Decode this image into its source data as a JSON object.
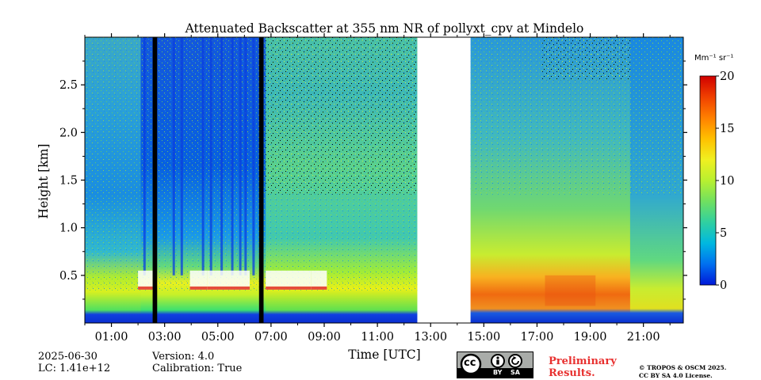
{
  "chart_data": {
    "type": "heatmap",
    "title": "Attenuated Backscatter at 355 nm NR of pollyxt_cpv at Mindelo",
    "xlabel": "Time [UTC]",
    "ylabel": "Height [km]",
    "x_range_hours": [
      0.0,
      22.5
    ],
    "y_range_km": [
      0.0,
      3.0
    ],
    "x_ticks": [
      {
        "value": 1,
        "label": "01:00"
      },
      {
        "value": 3,
        "label": "03:00"
      },
      {
        "value": 5,
        "label": "05:00"
      },
      {
        "value": 7,
        "label": "07:00"
      },
      {
        "value": 9,
        "label": "09:00"
      },
      {
        "value": 11,
        "label": "11:00"
      },
      {
        "value": 13,
        "label": "13:00"
      },
      {
        "value": 15,
        "label": "15:00"
      },
      {
        "value": 17,
        "label": "17:00"
      },
      {
        "value": 19,
        "label": "19:00"
      },
      {
        "value": 21,
        "label": "21:00"
      }
    ],
    "y_ticks": [
      {
        "value": 0.5,
        "label": "0.5"
      },
      {
        "value": 1.0,
        "label": "1.0"
      },
      {
        "value": 1.5,
        "label": "1.5"
      },
      {
        "value": 2.0,
        "label": "2.0"
      },
      {
        "value": 2.5,
        "label": "2.5"
      }
    ],
    "colorbar": {
      "label": "Mm⁻¹ sr⁻¹",
      "min": 0,
      "max": 20,
      "ticks": [
        {
          "value": 0,
          "label": "0"
        },
        {
          "value": 5,
          "label": "5"
        },
        {
          "value": 10,
          "label": "10"
        },
        {
          "value": 15,
          "label": "15"
        },
        {
          "value": 20,
          "label": "20"
        }
      ],
      "colors": [
        "#0018d8",
        "#0070f0",
        "#00b8e0",
        "#30d0a0",
        "#70e060",
        "#b8f030",
        "#f0f020",
        "#ffc000",
        "#ff8000",
        "#f04000",
        "#d00000"
      ]
    },
    "data_gaps_hours": [
      [
        12.5,
        14.5
      ]
    ],
    "missing_profile_bars_hours": [
      [
        2.55,
        2.72
      ],
      [
        6.55,
        6.72
      ]
    ],
    "boundary_layer_height_km": 0.5,
    "cloud_layer_km": [
      0.35,
      0.55
    ]
  },
  "footer": {
    "date": "2025-06-30",
    "lc": "LC: 1.41e+12",
    "version": "Version: 4.0",
    "calibration": "Calibration: True",
    "preliminary_line1": "Preliminary",
    "preliminary_line2": "Results.",
    "copyright_line1": "© TROPOS & OSCM 2025.",
    "copyright_line2": "CC BY SA 4.0 License.",
    "license_badge": {
      "by": "BY",
      "sa": "SA",
      "cc_text": "cc"
    }
  }
}
